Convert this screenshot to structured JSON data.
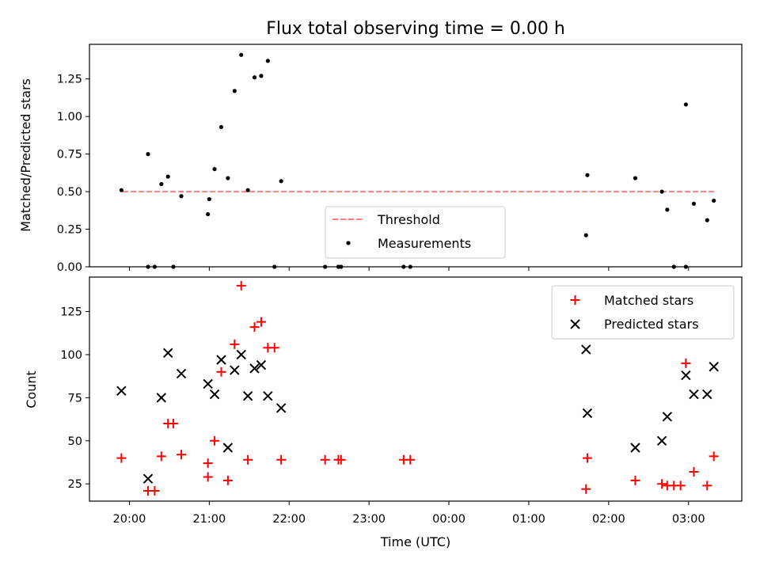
{
  "figure": {
    "title": "Flux total observing time = 0.00 h",
    "xlabel": "Time (UTC)"
  },
  "chart_data": [
    {
      "type": "scatter",
      "ylabel": "Matched/Predicted stars",
      "ylim": [
        0,
        1.48
      ],
      "yticks": [
        "0.00",
        "0.25",
        "0.50",
        "0.75",
        "1.00",
        "1.25"
      ],
      "legend": {
        "placement": "lower-center"
      },
      "threshold": {
        "name": "Threshold",
        "value": 0.5,
        "x_start": "19:55",
        "x_end": "03:20",
        "color": "#ff7f7f"
      },
      "series": [
        {
          "name": "Measurements",
          "color": "#000000",
          "points": [
            {
              "x": "19:54",
              "y": 0.51
            },
            {
              "x": "20:14",
              "y": 0.75
            },
            {
              "x": "20:14",
              "y": 0.0
            },
            {
              "x": "20:19",
              "y": 0.0
            },
            {
              "x": "20:24",
              "y": 0.55
            },
            {
              "x": "20:29",
              "y": 0.6
            },
            {
              "x": "20:33",
              "y": 0.0
            },
            {
              "x": "20:39",
              "y": 0.47
            },
            {
              "x": "20:59",
              "y": 0.35
            },
            {
              "x": "21:00",
              "y": 0.45
            },
            {
              "x": "21:04",
              "y": 0.65
            },
            {
              "x": "21:09",
              "y": 0.93
            },
            {
              "x": "21:14",
              "y": 0.59
            },
            {
              "x": "21:19",
              "y": 1.17
            },
            {
              "x": "21:24",
              "y": 1.41
            },
            {
              "x": "21:29",
              "y": 0.51
            },
            {
              "x": "21:34",
              "y": 1.26
            },
            {
              "x": "21:39",
              "y": 1.27
            },
            {
              "x": "21:44",
              "y": 1.37
            },
            {
              "x": "21:49",
              "y": 0.0
            },
            {
              "x": "21:54",
              "y": 0.57
            },
            {
              "x": "22:27",
              "y": 0.0
            },
            {
              "x": "22:37",
              "y": 0.0
            },
            {
              "x": "22:39",
              "y": 0.0
            },
            {
              "x": "23:26",
              "y": 0.0
            },
            {
              "x": "23:31",
              "y": 0.0
            },
            {
              "x": "01:43",
              "y": 0.21
            },
            {
              "x": "01:44",
              "y": 0.61
            },
            {
              "x": "02:20",
              "y": 0.59
            },
            {
              "x": "02:40",
              "y": 0.5
            },
            {
              "x": "02:44",
              "y": 0.38
            },
            {
              "x": "02:49",
              "y": 0.0
            },
            {
              "x": "02:58",
              "y": 1.08
            },
            {
              "x": "02:58",
              "y": 0.0
            },
            {
              "x": "03:04",
              "y": 0.42
            },
            {
              "x": "03:14",
              "y": 0.31
            },
            {
              "x": "03:19",
              "y": 0.44
            }
          ]
        }
      ]
    },
    {
      "type": "scatter",
      "ylabel": "Count",
      "ylim": [
        15,
        145
      ],
      "yticks": [
        "25",
        "50",
        "75",
        "100",
        "125"
      ],
      "xticks": [
        "20:00",
        "21:00",
        "22:00",
        "23:00",
        "00:00",
        "01:00",
        "02:00",
        "03:00"
      ],
      "xlim": [
        "19:30",
        "03:40"
      ],
      "legend": {
        "placement": "top-right"
      },
      "series": [
        {
          "name": "Matched stars",
          "marker": "plus",
          "color": "#ff0000",
          "points": [
            {
              "x": "19:54",
              "y": 40
            },
            {
              "x": "20:14",
              "y": 21
            },
            {
              "x": "20:19",
              "y": 21
            },
            {
              "x": "20:24",
              "y": 41
            },
            {
              "x": "20:29",
              "y": 60
            },
            {
              "x": "20:33",
              "y": 60
            },
            {
              "x": "20:39",
              "y": 42
            },
            {
              "x": "20:59",
              "y": 37
            },
            {
              "x": "20:59",
              "y": 29
            },
            {
              "x": "21:04",
              "y": 50
            },
            {
              "x": "21:09",
              "y": 90
            },
            {
              "x": "21:14",
              "y": 27
            },
            {
              "x": "21:19",
              "y": 106
            },
            {
              "x": "21:24",
              "y": 140
            },
            {
              "x": "21:29",
              "y": 39
            },
            {
              "x": "21:34",
              "y": 116
            },
            {
              "x": "21:39",
              "y": 119
            },
            {
              "x": "21:44",
              "y": 104
            },
            {
              "x": "21:49",
              "y": 104
            },
            {
              "x": "21:54",
              "y": 39
            },
            {
              "x": "22:27",
              "y": 39
            },
            {
              "x": "22:37",
              "y": 39
            },
            {
              "x": "22:39",
              "y": 39
            },
            {
              "x": "23:26",
              "y": 39
            },
            {
              "x": "23:31",
              "y": 39
            },
            {
              "x": "01:43",
              "y": 22
            },
            {
              "x": "01:44",
              "y": 40
            },
            {
              "x": "02:20",
              "y": 27
            },
            {
              "x": "02:40",
              "y": 25
            },
            {
              "x": "02:44",
              "y": 24
            },
            {
              "x": "02:49",
              "y": 24
            },
            {
              "x": "02:54",
              "y": 24
            },
            {
              "x": "02:58",
              "y": 95
            },
            {
              "x": "03:04",
              "y": 32
            },
            {
              "x": "03:14",
              "y": 24
            },
            {
              "x": "03:19",
              "y": 41
            }
          ]
        },
        {
          "name": "Predicted stars",
          "marker": "x",
          "color": "#000000",
          "points": [
            {
              "x": "19:54",
              "y": 79
            },
            {
              "x": "20:14",
              "y": 28
            },
            {
              "x": "20:24",
              "y": 75
            },
            {
              "x": "20:29",
              "y": 101
            },
            {
              "x": "20:39",
              "y": 89
            },
            {
              "x": "20:59",
              "y": 83
            },
            {
              "x": "21:04",
              "y": 77
            },
            {
              "x": "21:09",
              "y": 97
            },
            {
              "x": "21:14",
              "y": 46
            },
            {
              "x": "21:19",
              "y": 91
            },
            {
              "x": "21:24",
              "y": 100
            },
            {
              "x": "21:29",
              "y": 76
            },
            {
              "x": "21:34",
              "y": 92
            },
            {
              "x": "21:39",
              "y": 94
            },
            {
              "x": "21:44",
              "y": 76
            },
            {
              "x": "21:54",
              "y": 69
            },
            {
              "x": "01:43",
              "y": 103
            },
            {
              "x": "01:44",
              "y": 66
            },
            {
              "x": "02:20",
              "y": 46
            },
            {
              "x": "02:40",
              "y": 50
            },
            {
              "x": "02:44",
              "y": 64
            },
            {
              "x": "02:58",
              "y": 88
            },
            {
              "x": "03:04",
              "y": 77
            },
            {
              "x": "03:14",
              "y": 77
            },
            {
              "x": "03:19",
              "y": 93
            }
          ]
        }
      ]
    }
  ]
}
